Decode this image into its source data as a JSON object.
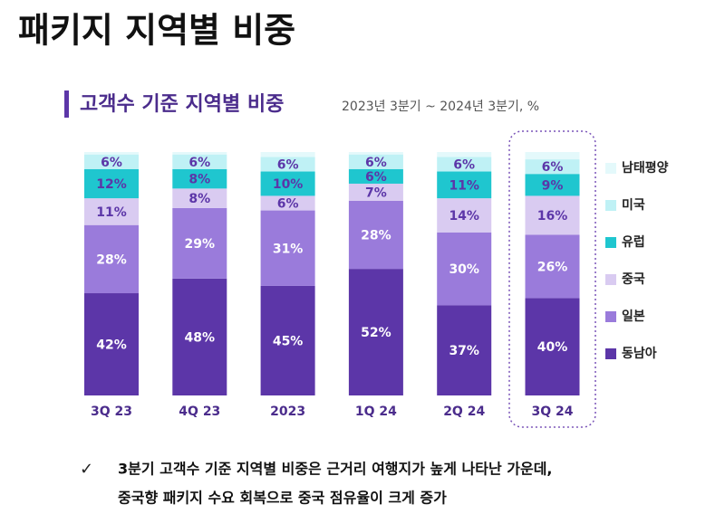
{
  "chart_data": {
    "type": "stacked_bar",
    "title": "패키지 지역별 비중",
    "subtitle": "고객수 기준 지역별 비중",
    "subtitle_note": "2023년 3분기 ~ 2024년 3분기, %",
    "categories": [
      "3Q 23",
      "4Q 23",
      "2023",
      "1Q 24",
      "2Q 24",
      "3Q 24"
    ],
    "ylim": [
      0,
      100
    ],
    "series": [
      {
        "name": "동남아",
        "color": "#5c36a8",
        "label_color": "#ffffff",
        "values": [
          42,
          48,
          45,
          52,
          37,
          40
        ],
        "value_labels": [
          "42%",
          "48%",
          "45%",
          "52%",
          "37%",
          "40%"
        ]
      },
      {
        "name": "일본",
        "color": "#9a7bdb",
        "label_color": "#ffffff",
        "values": [
          28,
          29,
          31,
          28,
          30,
          26
        ],
        "value_labels": [
          "28%",
          "29%",
          "31%",
          "28%",
          "30%",
          "26%"
        ]
      },
      {
        "name": "중국",
        "color": "#d9cbf1",
        "label_color": "#5c36a8",
        "values": [
          11,
          8,
          6,
          7,
          14,
          16
        ],
        "value_labels": [
          "11%",
          "8%",
          "6%",
          "7%",
          "14%",
          "16%"
        ]
      },
      {
        "name": "유럽",
        "color": "#1fc6cf",
        "label_color": "#5c36a8",
        "values": [
          12,
          8,
          10,
          6,
          11,
          9
        ],
        "value_labels": [
          "12%",
          "8%",
          "10%",
          "6%",
          "11%",
          "9%"
        ]
      },
      {
        "name": "미국",
        "color": "#bff1f5",
        "label_color": "#5c36a8",
        "values": [
          6,
          6,
          6,
          6,
          6,
          6
        ],
        "value_labels": [
          "6%",
          "6%",
          "6%",
          "6%",
          "6%",
          "6%"
        ]
      },
      {
        "name": "남태평양",
        "color": "#e4f9fb",
        "values": [
          1,
          1,
          2,
          1,
          2,
          3
        ]
      }
    ],
    "notes": [
      "✓",
      "3분기 고객수 기준 지역별 비중은 근거리 여행지가 높게 나타난 가운데,",
      "중국향 패키지 수요 회복으로 중국 점유율이 크게 증가"
    ]
  }
}
